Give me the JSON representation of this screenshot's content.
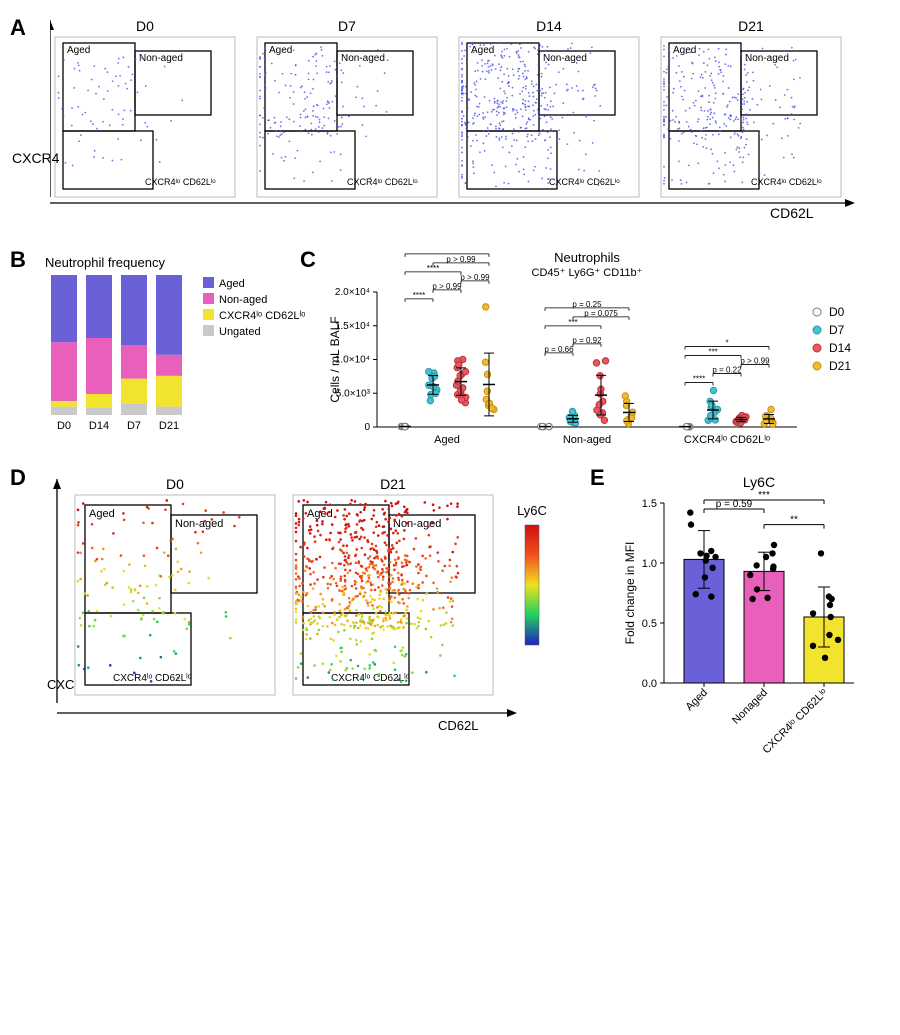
{
  "panel_labels": {
    "A": "A",
    "B": "B",
    "C": "C",
    "D": "D",
    "E": "E"
  },
  "axes": {
    "cxcr4": "CXCR4",
    "cd62l": "CD62L"
  },
  "gate_labels": {
    "aged": "Aged",
    "non_aged": "Non-aged",
    "lo": "CXCR4ˡᵒ CD62Lˡᵒ"
  },
  "gate_labels_html": {
    "lo": "CXCR4<sup>lo</sup> CD62L<sup>lo</sup>"
  },
  "timepoints": [
    "D0",
    "D7",
    "D14",
    "D21"
  ],
  "colors": {
    "aged": "#6a60d8",
    "non_aged": "#e85fbc",
    "lo": "#f2e32f",
    "ungated": "#c9c9c9",
    "d0": "#ffffff",
    "d0_stroke": "#7a7a7a",
    "d7": "#43c3d6",
    "d14": "#e8565f",
    "d21": "#f2bb2d",
    "dot": "#5a57e0",
    "axis": "#000000",
    "grid": "#bbbbbb"
  },
  "panelA": {
    "plots": [
      {
        "title": "D0",
        "n": 70,
        "spread": 0.8
      },
      {
        "title": "D7",
        "n": 180,
        "spread": 1.0
      },
      {
        "title": "D14",
        "n": 420,
        "spread": 1.1
      },
      {
        "title": "D21",
        "n": 300,
        "spread": 1.05
      }
    ],
    "dot_color": "#4b4fe0"
  },
  "panelB": {
    "title": "Neutrophil frequency",
    "legend": [
      {
        "label": "Aged",
        "color": "#6a60d8"
      },
      {
        "label": "Non-aged",
        "color": "#e85fbc"
      },
      {
        "label": "CXCR4ˡᵒ CD62Lˡᵒ",
        "color": "#f2e32f"
      },
      {
        "label": "Ungated",
        "color": "#c9c9c9"
      }
    ],
    "bars": [
      {
        "day": "D0",
        "segments": [
          {
            "k": "ungated",
            "v": 6
          },
          {
            "k": "lo",
            "v": 4
          },
          {
            "k": "non_aged",
            "v": 42
          },
          {
            "k": "aged",
            "v": 48
          }
        ]
      },
      {
        "day": "D14",
        "segments": [
          {
            "k": "ungated",
            "v": 5
          },
          {
            "k": "lo",
            "v": 10
          },
          {
            "k": "non_aged",
            "v": 40
          },
          {
            "k": "aged",
            "v": 45
          }
        ]
      },
      {
        "day": "D7",
        "segments": [
          {
            "k": "ungated",
            "v": 8
          },
          {
            "k": "lo",
            "v": 18
          },
          {
            "k": "non_aged",
            "v": 24
          },
          {
            "k": "aged",
            "v": 50
          }
        ]
      },
      {
        "day": "D21",
        "segments": [
          {
            "k": "ungated",
            "v": 6
          },
          {
            "k": "lo",
            "v": 22
          },
          {
            "k": "non_aged",
            "v": 15
          },
          {
            "k": "aged",
            "v": 57
          }
        ]
      }
    ],
    "height": 140
  },
  "panelC": {
    "title": "Neutrophils",
    "subtitle": "CD45⁺ Ly6G⁺ CD11b⁺",
    "ylabel": "Cells / mL BALF",
    "ymax": 20000,
    "ytick_step": 5000,
    "ytick_labels": [
      "0",
      "5.0×10³",
      "1.0×10⁴",
      "1.5×10⁴",
      "2.0×10⁴"
    ],
    "groups": [
      "Aged",
      "Non-aged",
      "CXCR4ˡᵒ CD62Lˡᵒ"
    ],
    "series": [
      "D0",
      "D7",
      "D14",
      "D21"
    ],
    "series_colors": {
      "D0": "#ffffff",
      "D7": "#43c3d6",
      "D14": "#e8565f",
      "D21": "#f2bb2d"
    },
    "series_stroke": {
      "D0": "#7a7a7a",
      "D7": "#2a97a8",
      "D14": "#b8373f",
      "D21": "#c2921a"
    },
    "data": {
      "Aged": {
        "D0": [
          50,
          80,
          60,
          90,
          70,
          55
        ],
        "D7": [
          6200,
          5500,
          8000,
          7200,
          4800,
          5000,
          7500,
          8200,
          6000,
          3900
        ],
        "D14": [
          10000,
          4800,
          7800,
          5200,
          9800,
          6200,
          3600,
          4400,
          8800,
          5400,
          8200,
          6800,
          7600,
          4000,
          5800,
          9200
        ],
        "D21": [
          17800,
          2600,
          3200,
          4100,
          3500,
          5300,
          9600,
          2800,
          7800
        ]
      },
      "Non-aged": {
        "D0": [
          40,
          70,
          55,
          80,
          60
        ],
        "D7": [
          700,
          950,
          1300,
          1150,
          600,
          1700,
          1400,
          850,
          2300
        ],
        "D14": [
          2500,
          9500,
          7600,
          3800,
          2100,
          9800,
          3300,
          4900,
          5600,
          1800,
          1000
        ],
        "D21": [
          500,
          1100,
          3800,
          3200,
          1700,
          4600,
          900,
          1400,
          2200
        ]
      },
      "CXCR4ˡᵒ CD62Lˡᵒ": {
        "D0": [
          30,
          60,
          45,
          70,
          50
        ],
        "D7": [
          5400,
          1000,
          2900,
          1300,
          3800,
          3200,
          2200,
          1050,
          1700,
          2600
        ],
        "D14": [
          800,
          1350,
          1100,
          900,
          700,
          1500,
          600,
          1050,
          1700,
          1250,
          950,
          1400
        ],
        "D21": [
          650,
          1700,
          500,
          1600,
          2600,
          1050,
          1300,
          400,
          900
        ]
      }
    },
    "annotations": {
      "Aged": [
        {
          "from": "D0",
          "to": "D7",
          "text": "****"
        },
        {
          "from": "D0",
          "to": "D14",
          "text": "****"
        },
        {
          "from": "D0",
          "to": "D21",
          "text": "***"
        },
        {
          "from": "D7",
          "to": "D14",
          "text": "p > 0.99"
        },
        {
          "from": "D7",
          "to": "D21",
          "text": "p > 0.99"
        },
        {
          "from": "D14",
          "to": "D21",
          "text": "p > 0.99"
        }
      ],
      "Non-aged": [
        {
          "from": "D0",
          "to": "D7",
          "text": "p = 0.66"
        },
        {
          "from": "D0",
          "to": "D14",
          "text": "***"
        },
        {
          "from": "D0",
          "to": "D21",
          "text": "p = 0.25"
        },
        {
          "from": "D7",
          "to": "D14",
          "text": "p = 0.92"
        },
        {
          "from": "D7",
          "to": "D21",
          "text": "p = 0.075"
        },
        {
          "from": "D14",
          "to": "D21",
          "text": ""
        }
      ],
      "CXCR4ˡᵒ CD62Lˡᵒ": [
        {
          "from": "D0",
          "to": "D7",
          "text": "****"
        },
        {
          "from": "D0",
          "to": "D14",
          "text": "***"
        },
        {
          "from": "D0",
          "to": "D21",
          "text": "*"
        },
        {
          "from": "D7",
          "to": "D14",
          "text": "p = 0.22"
        },
        {
          "from": "D14",
          "to": "D21",
          "text": "p > 0.99"
        }
      ]
    }
  },
  "panelD": {
    "titles": [
      "D0",
      "D21"
    ],
    "colorbar_title": "Ly6C",
    "n": [
      120,
      700
    ],
    "gradient": [
      "#2020c0",
      "#20d060",
      "#f0e020",
      "#f05020",
      "#d01010"
    ]
  },
  "panelE": {
    "title": "Ly6C",
    "ylabel": "Fold change in MFI",
    "ymax": 1.5,
    "ytick_step": 0.5,
    "groups": [
      {
        "label": "Aged",
        "color": "#6a60d8"
      },
      {
        "label": "Nonaged",
        "color": "#e85fbc"
      },
      {
        "label": "CXCR4ˡᵒ CD62Lˡᵒ",
        "color": "#f2e32f"
      }
    ],
    "data": {
      "Aged": [
        1.42,
        1.32,
        1.05,
        0.72,
        1.02,
        1.08,
        0.74,
        1.06,
        0.96,
        1.1,
        0.88
      ],
      "Nonaged": [
        0.71,
        0.97,
        1.08,
        0.78,
        1.15,
        0.95,
        0.7,
        0.98,
        0.9,
        1.05
      ],
      "CXCR4ˡᵒ CD62Lˡᵒ": [
        1.08,
        0.7,
        0.31,
        0.55,
        0.21,
        0.58,
        0.4,
        0.65,
        0.36,
        0.72
      ]
    },
    "means": {
      "Aged": 1.03,
      "Nonaged": 0.93,
      "CXCR4ˡᵒ CD62Lˡᵒ": 0.55
    },
    "sd": {
      "Aged": 0.24,
      "Nonaged": 0.16,
      "CXCR4ˡᵒ CD62Lˡᵒ": 0.25
    },
    "annotations": [
      {
        "from": 0,
        "to": 1,
        "text": "p = 0.59",
        "y": 1.45
      },
      {
        "from": 1,
        "to": 2,
        "text": "**",
        "y": 1.32
      },
      {
        "from": 0,
        "to": 2,
        "text": "***",
        "y": 1.55
      }
    ]
  }
}
